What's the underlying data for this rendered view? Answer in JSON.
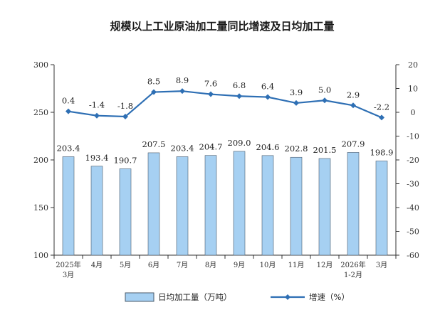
{
  "chart_data": {
    "type": "bar+line",
    "title": "规模以上工业原油加工量同比增速及日均加工量",
    "categories": [
      {
        "line1": "2025年",
        "line2": "3月"
      },
      {
        "line1": "4月",
        "line2": ""
      },
      {
        "line1": "5月",
        "line2": ""
      },
      {
        "line1": "6月",
        "line2": ""
      },
      {
        "line1": "7月",
        "line2": ""
      },
      {
        "line1": "8月",
        "line2": ""
      },
      {
        "line1": "9月",
        "line2": ""
      },
      {
        "line1": "10月",
        "line2": ""
      },
      {
        "line1": "11月",
        "line2": ""
      },
      {
        "line1": "12月",
        "line2": ""
      },
      {
        "line1": "2026年",
        "line2": "1-2月"
      },
      {
        "line1": "3月",
        "line2": ""
      }
    ],
    "series": [
      {
        "name": "日均加工量（万吨）",
        "type": "bar",
        "axis": "left",
        "values": [
          203.4,
          193.4,
          190.7,
          207.5,
          203.4,
          204.7,
          209.0,
          204.6,
          202.8,
          201.5,
          207.9,
          198.9
        ],
        "labels": [
          "203.4",
          "193.4",
          "190.7",
          "207.5",
          "203.4",
          "204.7",
          "209.0",
          "204.6",
          "202.8",
          "201.5",
          "207.9",
          "198.9"
        ]
      },
      {
        "name": "增速（%）",
        "type": "line",
        "axis": "right",
        "values": [
          0.4,
          -1.4,
          -1.8,
          8.5,
          8.9,
          7.6,
          6.8,
          6.4,
          3.9,
          5.0,
          2.9,
          -2.2
        ],
        "labels": [
          "0.4",
          "-1.4",
          "-1.8",
          "8.5",
          "8.9",
          "7.6",
          "6.8",
          "6.4",
          "3.9",
          "5.0",
          "2.9",
          "-2.2"
        ]
      }
    ],
    "y_left": {
      "min": 100,
      "max": 300,
      "ticks": [
        "100",
        "150",
        "200",
        "250",
        "300"
      ]
    },
    "y_right": {
      "min": -60,
      "max": 20,
      "ticks": [
        "-60",
        "-50",
        "-40",
        "-30",
        "-20",
        "-10",
        "0",
        "10",
        "20"
      ]
    },
    "legend": {
      "bar_label": "日均加工量（万吨）",
      "line_label": "增速（%）",
      "position": "bottom"
    },
    "colors": {
      "bar_fill": "#a6d0f2",
      "bar_stroke": "#4a5a6a",
      "line": "#2e6fb4",
      "axis": "#333333"
    }
  }
}
